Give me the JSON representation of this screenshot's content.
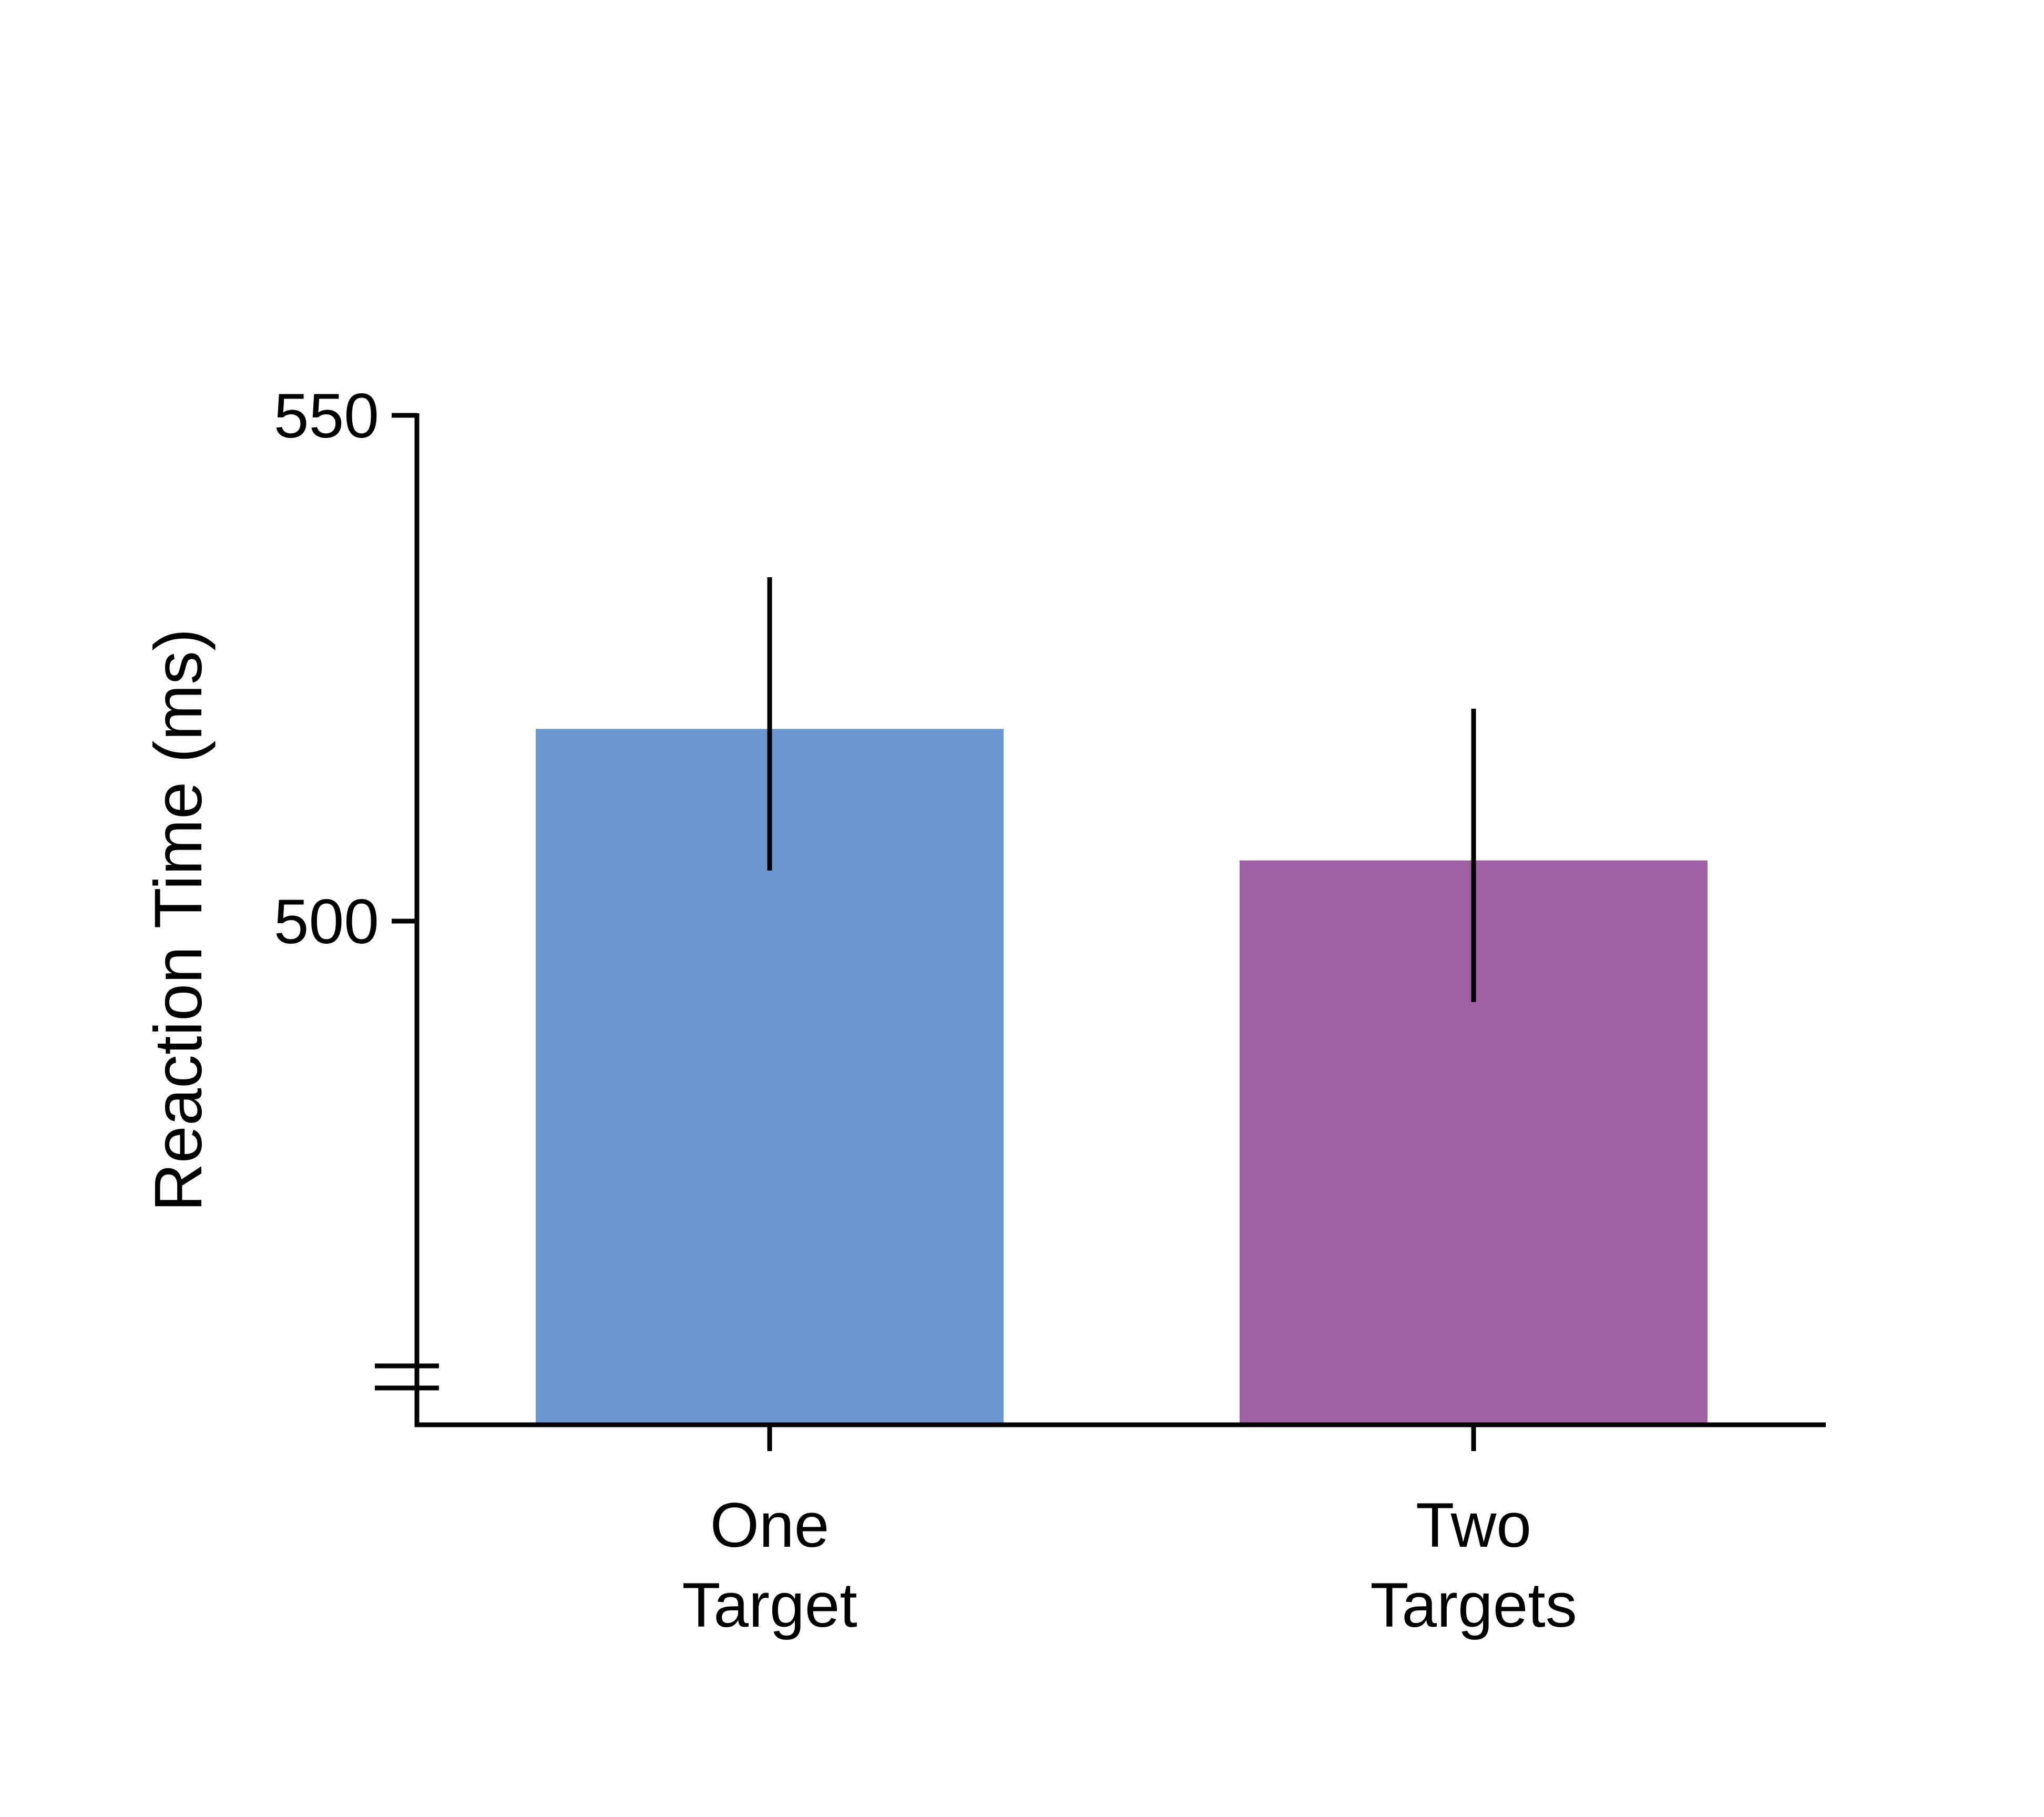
{
  "chart_data": {
    "type": "bar",
    "title": "",
    "xlabel": "",
    "ylabel": "Reaction Time (ms)",
    "categories": [
      "One\nTarget",
      "Two\nTargets"
    ],
    "values": [
      519,
      506
    ],
    "error_bars": [
      {
        "low": 505,
        "high": 534
      },
      {
        "low": 492,
        "high": 521
      }
    ],
    "colors": [
      "#6a97cd",
      "#a060a5"
    ],
    "ylim": [
      450,
      550
    ],
    "yticks": [
      {
        "value": 500,
        "label": "500"
      },
      {
        "value": 550,
        "label": "550"
      }
    ],
    "axis_break": true,
    "grid": false,
    "legend": "none"
  }
}
